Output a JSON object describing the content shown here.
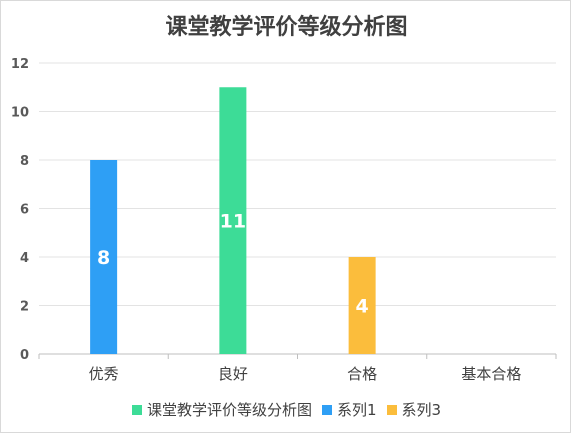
{
  "chart_data": {
    "type": "bar",
    "title": "课堂教学评价等级分析图",
    "categories": [
      "优秀",
      "良好",
      "合格",
      "基本合格"
    ],
    "ylim": [
      0,
      12
    ],
    "yticks": [
      0,
      2,
      4,
      6,
      8,
      10,
      12
    ],
    "grid": true,
    "legend_position": "bottom",
    "series": [
      {
        "name": "课堂教学评价等级分析图",
        "color": "#3ddc97",
        "values": [
          null,
          11,
          null,
          null
        ]
      },
      {
        "name": "系列1",
        "color": "#2e9ff5",
        "values": [
          8,
          null,
          null,
          null
        ]
      },
      {
        "name": "系列3",
        "color": "#fbbd3c",
        "values": [
          null,
          null,
          4,
          null
        ]
      }
    ],
    "data_labels": true
  }
}
